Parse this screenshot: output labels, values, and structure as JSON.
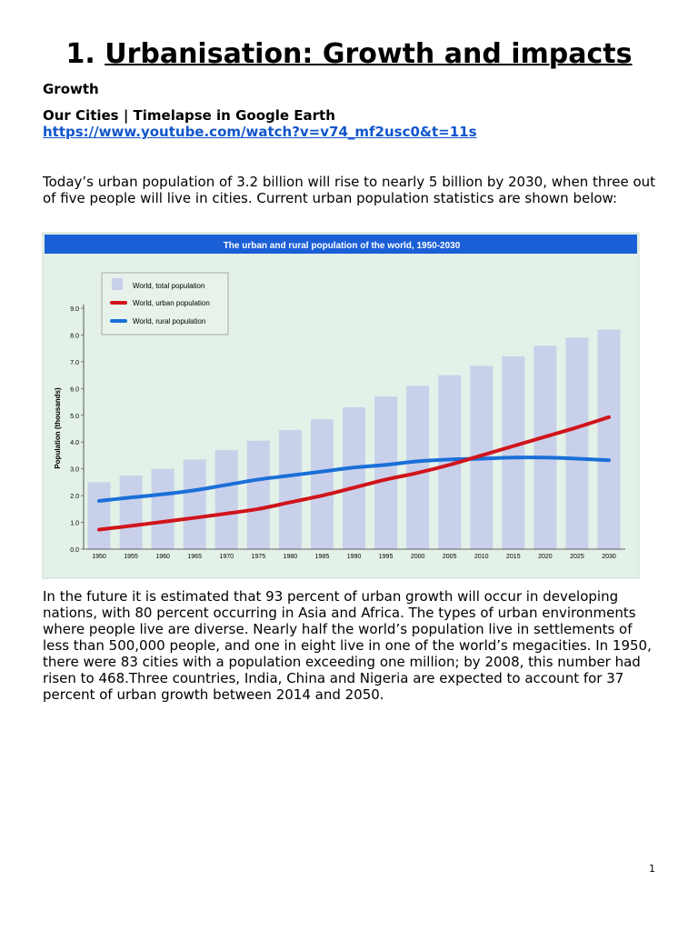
{
  "document": {
    "title_number": "1.",
    "title_text": "Urbanisation: Growth and impacts",
    "section_heading": "Growth",
    "video_title": "Our Cities | Timelapse in Google Earth",
    "video_link": "https://www.youtube.com/watch?v=v74_mf2usc0&t=11s",
    "intro_paragraph": "Today’s urban population of 3.2 billion will rise to nearly 5 billion by 2030, when three out of five people will live in cities. Current urban population statistics are shown below:",
    "body_paragraph": "In the future it is estimated that 93 percent of urban growth will occur in developing nations, with 80 percent occurring in Asia and Africa. The types of urban environments where people live are diverse. Nearly half the world’s population live in settlements of less than 500,000 people, and one in eight live in one of the world’s megacities. In 1950, there were 83 cities with a population exceeding one million; by 2008, this number had risen to 468.Three countries, India, China and Nigeria are expected to account for 37 percent of urban growth between 2014 and 2050.",
    "page_number": "1"
  },
  "chart_data": {
    "type": "bar",
    "title": "The urban and rural population of the world, 1950-2030",
    "xlabel": "",
    "ylabel": "Population (thousands)",
    "ylim": [
      0,
      9
    ],
    "yticks": [
      "0.0",
      "1.0",
      "2.0",
      "3.0",
      "4.0",
      "5.0",
      "6.0",
      "7.0",
      "8.0",
      "9.0"
    ],
    "categories": [
      "1950",
      "1955",
      "1960",
      "1965",
      "1970",
      "1975",
      "1980",
      "1985",
      "1990",
      "1995",
      "2000",
      "2005",
      "2010",
      "2015",
      "2020",
      "2025",
      "2030"
    ],
    "grid": false,
    "legend_position": "top-left",
    "series": [
      {
        "name": "World, total population",
        "kind": "bar",
        "color": "#c9d0ea",
        "values": [
          2.5,
          2.75,
          3.0,
          3.35,
          3.7,
          4.05,
          4.45,
          4.85,
          5.3,
          5.7,
          6.1,
          6.5,
          6.85,
          7.2,
          7.6,
          7.9,
          8.2
        ]
      },
      {
        "name": "World, urban population",
        "kind": "line",
        "color": "#d0141b",
        "values": [
          0.73,
          0.87,
          1.02,
          1.17,
          1.33,
          1.5,
          1.75,
          2.0,
          2.3,
          2.6,
          2.85,
          3.15,
          3.5,
          3.85,
          4.2,
          4.55,
          4.93
        ]
      },
      {
        "name": "World, rural population",
        "kind": "line",
        "color": "#1a6fd8",
        "values": [
          1.8,
          1.93,
          2.05,
          2.2,
          2.4,
          2.6,
          2.75,
          2.9,
          3.05,
          3.15,
          3.28,
          3.35,
          3.38,
          3.42,
          3.42,
          3.38,
          3.32
        ]
      }
    ],
    "colors": {
      "title_bar": "#1a5fd6",
      "background": "#e3f1e8"
    }
  }
}
